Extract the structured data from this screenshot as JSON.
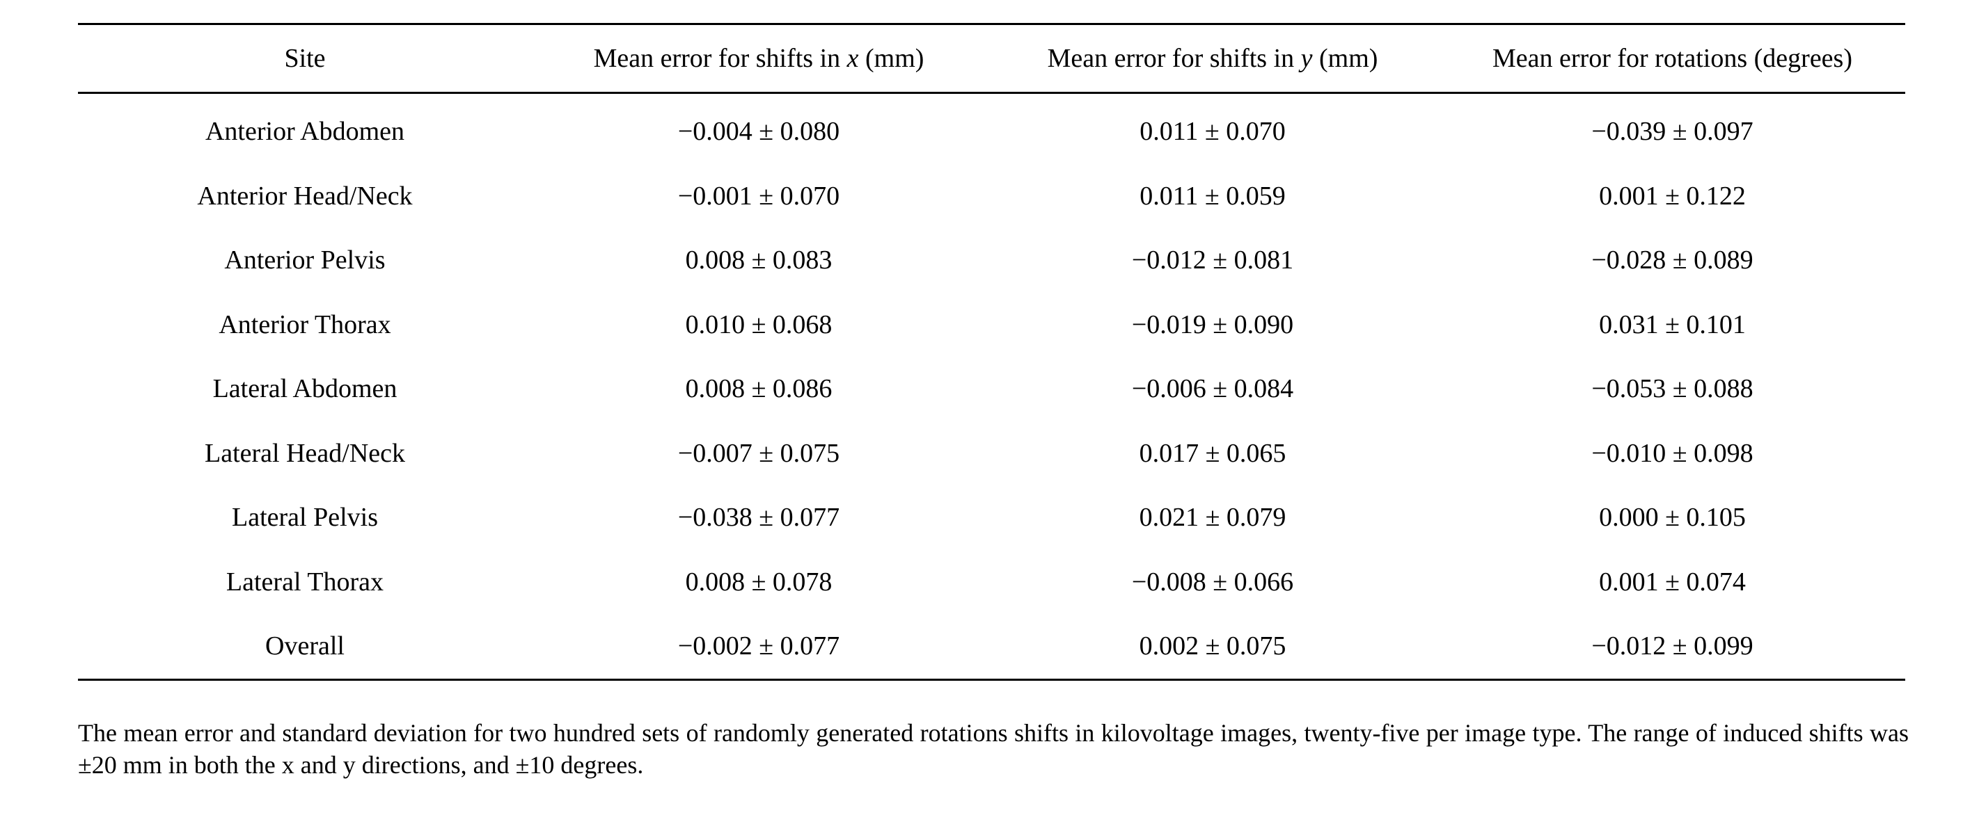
{
  "table": {
    "headers": [
      "Site",
      "Mean error for shifts in x (mm)",
      "Mean error for shifts in y (mm)",
      "Mean error for rotations (degrees)"
    ],
    "header_parts": {
      "x": {
        "pre": "Mean error for shifts in ",
        "var": "x",
        "post": " (mm)"
      },
      "y": {
        "pre": "Mean error for shifts in ",
        "var": "y",
        "post": " (mm)"
      }
    },
    "rows": [
      [
        "Anterior Abdomen",
        "−0.004 ± 0.080",
        "0.011 ± 0.070",
        "−0.039 ± 0.097"
      ],
      [
        "Anterior Head/Neck",
        "−0.001 ± 0.070",
        "0.011 ± 0.059",
        "0.001 ± 0.122"
      ],
      [
        "Anterior Pelvis",
        "0.008 ± 0.083",
        "−0.012 ± 0.081",
        "−0.028 ± 0.089"
      ],
      [
        "Anterior Thorax",
        "0.010 ± 0.068",
        "−0.019 ± 0.090",
        "0.031 ± 0.101"
      ],
      [
        "Lateral Abdomen",
        "0.008 ± 0.086",
        "−0.006 ± 0.084",
        "−0.053 ± 0.088"
      ],
      [
        "Lateral Head/Neck",
        "−0.007 ± 0.075",
        "0.017 ± 0.065",
        "−0.010 ± 0.098"
      ],
      [
        "Lateral Pelvis",
        "−0.038 ± 0.077",
        "0.021 ± 0.079",
        "0.000 ± 0.105"
      ],
      [
        "Lateral Thorax",
        "0.008 ± 0.078",
        "−0.008 ± 0.066",
        "0.001 ± 0.074"
      ],
      [
        "Overall",
        "−0.002 ± 0.077",
        "0.002 ± 0.075",
        "−0.012 ± 0.099"
      ]
    ]
  },
  "caption": "The mean error and standard deviation for two hundred sets of randomly generated rotations shifts in kilovoltage images, twenty-five per image type. The range of induced shifts was ±20 mm in both the x and y directions, and ±10 degrees."
}
